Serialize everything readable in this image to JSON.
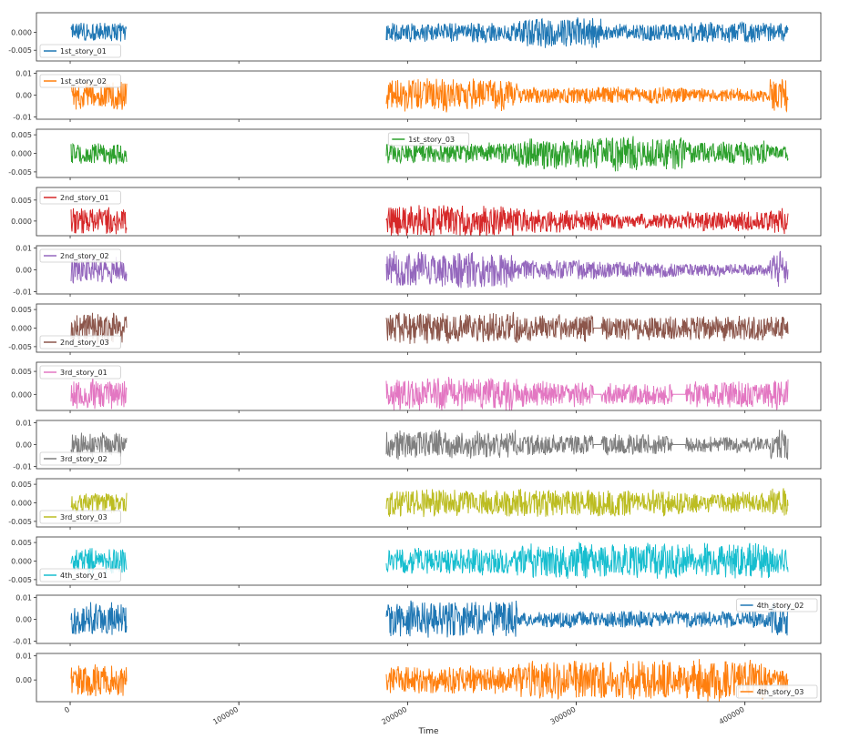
{
  "chart_data": {
    "type": "line",
    "subplots": true,
    "xlabel": "Time",
    "xlim": [
      -20000,
      445000
    ],
    "x_ticks": [
      0,
      100000,
      200000,
      300000,
      400000
    ],
    "x_tick_labels": [
      "0",
      "100000",
      "200000",
      "300000",
      "400000"
    ],
    "grid": false,
    "segments": [
      [
        0,
        34000
      ],
      [
        187000,
        426000
      ]
    ],
    "series": [
      {
        "name": "1st_story_01",
        "color": "#1f77b4",
        "ylim": [
          -0.008,
          0.0055
        ],
        "yticks": [
          0.0,
          -0.005
        ],
        "ytick_labels": [
          "0.000",
          "-0.005"
        ],
        "legend_loc": "lower-left",
        "amplitude": [
          [
            0,
            34000,
            0.003
          ],
          [
            187000,
            265000,
            0.003
          ],
          [
            265000,
            315000,
            0.0045
          ],
          [
            315000,
            365000,
            0.0025
          ],
          [
            365000,
            415000,
            0.003
          ],
          [
            415000,
            426000,
            0.0028
          ]
        ]
      },
      {
        "name": "1st_story_02",
        "color": "#ff7f0e",
        "ylim": [
          -0.011,
          0.011
        ],
        "yticks": [
          0.01,
          0.0,
          -0.01
        ],
        "ytick_labels": [
          "0.01",
          "0.00",
          "-0.01"
        ],
        "legend_loc": "upper-left",
        "amplitude": [
          [
            0,
            34000,
            0.007
          ],
          [
            187000,
            265000,
            0.008
          ],
          [
            265000,
            315000,
            0.004
          ],
          [
            315000,
            365000,
            0.004
          ],
          [
            365000,
            415000,
            0.0035
          ],
          [
            415000,
            426000,
            0.008
          ]
        ]
      },
      {
        "name": "1st_story_03",
        "color": "#2ca02c",
        "ylim": [
          -0.0065,
          0.0065
        ],
        "yticks": [
          0.005,
          0.0,
          -0.005
        ],
        "ytick_labels": [
          "0.005",
          "0.000",
          "-0.005"
        ],
        "legend_loc": "upper-center",
        "amplitude": [
          [
            0,
            34000,
            0.003
          ],
          [
            187000,
            265000,
            0.003
          ],
          [
            265000,
            315000,
            0.0045
          ],
          [
            315000,
            365000,
            0.005
          ],
          [
            365000,
            415000,
            0.0035
          ],
          [
            415000,
            426000,
            0.002
          ]
        ]
      },
      {
        "name": "2nd_story_01",
        "color": "#d62728",
        "ylim": [
          -0.0035,
          0.008
        ],
        "yticks": [
          0.005,
          0.0
        ],
        "ytick_labels": [
          "0.005",
          "0.000"
        ],
        "legend_loc": "upper-left",
        "amplitude": [
          [
            0,
            34000,
            0.0035
          ],
          [
            187000,
            265000,
            0.004
          ],
          [
            265000,
            315000,
            0.003
          ],
          [
            315000,
            365000,
            0.002
          ],
          [
            365000,
            415000,
            0.0025
          ],
          [
            415000,
            426000,
            0.0035
          ]
        ]
      },
      {
        "name": "2nd_story_02",
        "color": "#9467bd",
        "ylim": [
          -0.011,
          0.011
        ],
        "yticks": [
          0.01,
          0.0,
          -0.01
        ],
        "ytick_labels": [
          "0.01",
          "0.00",
          "-0.01"
        ],
        "legend_loc": "upper-left",
        "amplitude": [
          [
            0,
            34000,
            0.007
          ],
          [
            187000,
            265000,
            0.009
          ],
          [
            265000,
            315000,
            0.005
          ],
          [
            315000,
            365000,
            0.004
          ],
          [
            365000,
            415000,
            0.003
          ],
          [
            415000,
            426000,
            0.009
          ]
        ]
      },
      {
        "name": "2nd_story_03",
        "color": "#8c564b",
        "ylim": [
          -0.0065,
          0.0065
        ],
        "yticks": [
          0.005,
          0.0,
          -0.005
        ],
        "ytick_labels": [
          "0.005",
          "0.000",
          "-0.005"
        ],
        "legend_loc": "lower-left",
        "amplitude": [
          [
            0,
            34000,
            0.0045
          ],
          [
            187000,
            265000,
            0.0045
          ],
          [
            265000,
            310000,
            0.004
          ],
          [
            315000,
            365000,
            0.0035
          ],
          [
            365000,
            415000,
            0.004
          ],
          [
            415000,
            426000,
            0.0035
          ]
        ]
      },
      {
        "name": "3rd_story_01",
        "color": "#e377c2",
        "ylim": [
          -0.0035,
          0.007
        ],
        "yticks": [
          0.005,
          0.0
        ],
        "ytick_labels": [
          "0.005",
          "0.000"
        ],
        "legend_loc": "upper-left",
        "amplitude": [
          [
            0,
            34000,
            0.0035
          ],
          [
            187000,
            265000,
            0.004
          ],
          [
            265000,
            310000,
            0.003
          ],
          [
            315000,
            357000,
            0.0025
          ],
          [
            365000,
            415000,
            0.003
          ],
          [
            415000,
            426000,
            0.004
          ]
        ]
      },
      {
        "name": "3rd_story_02",
        "color": "#7f7f7f",
        "ylim": [
          -0.011,
          0.011
        ],
        "yticks": [
          0.01,
          0.0,
          -0.01
        ],
        "ytick_labels": [
          "0.01",
          "0.00",
          "-0.01"
        ],
        "legend_loc": "lower-left",
        "amplitude": [
          [
            0,
            34000,
            0.006
          ],
          [
            187000,
            265000,
            0.007
          ],
          [
            265000,
            310000,
            0.005
          ],
          [
            315000,
            357000,
            0.005
          ],
          [
            365000,
            415000,
            0.004
          ],
          [
            415000,
            426000,
            0.008
          ]
        ]
      },
      {
        "name": "3rd_story_03",
        "color": "#bcbd22",
        "ylim": [
          -0.0065,
          0.0065
        ],
        "yticks": [
          0.005,
          0.0,
          -0.005
        ],
        "ytick_labels": [
          "0.005",
          "0.000",
          "-0.005"
        ],
        "legend_loc": "lower-left",
        "amplitude": [
          [
            0,
            34000,
            0.003
          ],
          [
            187000,
            265000,
            0.004
          ],
          [
            265000,
            315000,
            0.004
          ],
          [
            315000,
            365000,
            0.004
          ],
          [
            365000,
            415000,
            0.003
          ],
          [
            415000,
            426000,
            0.004
          ]
        ]
      },
      {
        "name": "4th_story_01",
        "color": "#17becf",
        "ylim": [
          -0.0065,
          0.0065
        ],
        "yticks": [
          0.005,
          0.0,
          -0.005
        ],
        "ytick_labels": [
          "0.005",
          "0.000",
          "-0.005"
        ],
        "legend_loc": "lower-left",
        "amplitude": [
          [
            0,
            34000,
            0.004
          ],
          [
            187000,
            265000,
            0.004
          ],
          [
            265000,
            315000,
            0.005
          ],
          [
            315000,
            365000,
            0.005
          ],
          [
            365000,
            415000,
            0.005
          ],
          [
            415000,
            426000,
            0.004
          ]
        ]
      },
      {
        "name": "4th_story_02",
        "color": "#1f77b4",
        "ylim": [
          -0.011,
          0.011
        ],
        "yticks": [
          0.01,
          0.0,
          -0.01
        ],
        "ytick_labels": [
          "0.01",
          "0.00",
          "-0.01"
        ],
        "legend_loc": "upper-right",
        "amplitude": [
          [
            0,
            34000,
            0.008
          ],
          [
            187000,
            265000,
            0.009
          ],
          [
            265000,
            315000,
            0.004
          ],
          [
            315000,
            365000,
            0.004
          ],
          [
            365000,
            415000,
            0.004
          ],
          [
            415000,
            426000,
            0.009
          ]
        ]
      },
      {
        "name": "4th_story_03",
        "color": "#ff7f0e",
        "ylim": [
          -0.009,
          0.011
        ],
        "yticks": [
          0.01,
          0.0
        ],
        "ytick_labels": [
          "0.01",
          "0.00"
        ],
        "legend_loc": "lower-right",
        "amplitude": [
          [
            0,
            34000,
            0.007
          ],
          [
            187000,
            265000,
            0.006
          ],
          [
            265000,
            315000,
            0.009
          ],
          [
            315000,
            365000,
            0.009
          ],
          [
            365000,
            415000,
            0.009
          ],
          [
            415000,
            426000,
            0.005
          ]
        ]
      }
    ]
  }
}
